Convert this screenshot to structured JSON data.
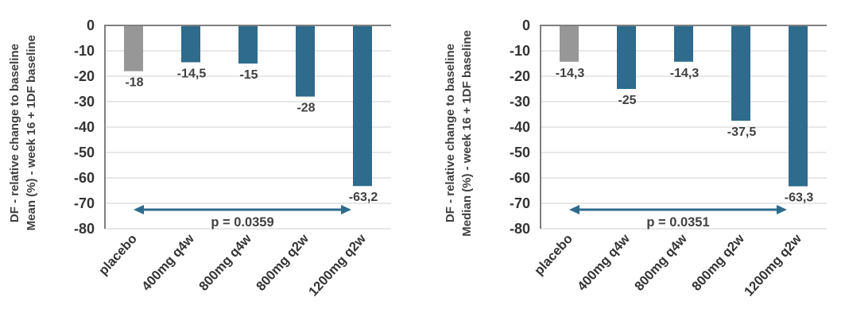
{
  "page": {
    "background": "#ffffff"
  },
  "colors": {
    "bar_blue": "#2e6b8d",
    "bar_gray": "#979797",
    "axis_line": "#808080",
    "gridline": "#d9d9d9",
    "tick_text": "#333333",
    "value_text": "#404040",
    "arrow": "#2e6b8d"
  },
  "chart_data": [
    {
      "type": "bar",
      "name": "mean",
      "title": "",
      "xlabel": "",
      "ylabel_lines": [
        "DF - relative change to baseline",
        "Mean (%) - week 16 + 1DF baseline"
      ],
      "categories": [
        "placebo",
        "400mg q4w",
        "800mg q4w",
        "800mg q2w",
        "1200mg q2w"
      ],
      "values": [
        -18,
        -14.5,
        -15,
        -28,
        -63.2
      ],
      "value_labels": [
        "-18",
        "-14,5",
        "-15",
        "-28",
        "-63,2"
      ],
      "bar_colors": [
        "gray",
        "blue",
        "blue",
        "blue",
        "blue"
      ],
      "ylim": [
        -80,
        0
      ],
      "yticks": [
        0,
        -10,
        -20,
        -30,
        -40,
        -50,
        -60,
        -70,
        -80
      ],
      "ytick_labels": [
        "0",
        "-10",
        "-20",
        "-30",
        "-40",
        "-50",
        "-60",
        "-70",
        "-80"
      ],
      "grid": true,
      "legend": "none",
      "annotation": {
        "text": "p = 0.0359",
        "arrow_from_category": 0,
        "arrow_to_category": 4,
        "arrow_y": -72.5
      }
    },
    {
      "type": "bar",
      "name": "median",
      "title": "",
      "xlabel": "",
      "ylabel_lines": [
        "DF - relative change to baseline",
        "Median (%) - week 16 + 1DF baseline"
      ],
      "categories": [
        "placebo",
        "400mg q4w",
        "800mg q4w",
        "800mg q2w",
        "1200mg q2w"
      ],
      "values": [
        -14.3,
        -25,
        -14.3,
        -37.5,
        -63.3
      ],
      "value_labels": [
        "-14,3",
        "-25",
        "-14,3",
        "-37,5",
        "-63,3"
      ],
      "bar_colors": [
        "gray",
        "blue",
        "blue",
        "blue",
        "blue"
      ],
      "ylim": [
        -80,
        0
      ],
      "yticks": [
        0,
        -10,
        -20,
        -30,
        -40,
        -50,
        -60,
        -70,
        -80
      ],
      "ytick_labels": [
        "0",
        "-10",
        "-20",
        "-30",
        "-40",
        "-50",
        "-60",
        "-70",
        "-80"
      ],
      "grid": true,
      "legend": "none",
      "annotation": {
        "text": "p = 0.0351",
        "arrow_from_category": 0,
        "arrow_to_category": 4,
        "arrow_y": -72.5
      }
    }
  ]
}
